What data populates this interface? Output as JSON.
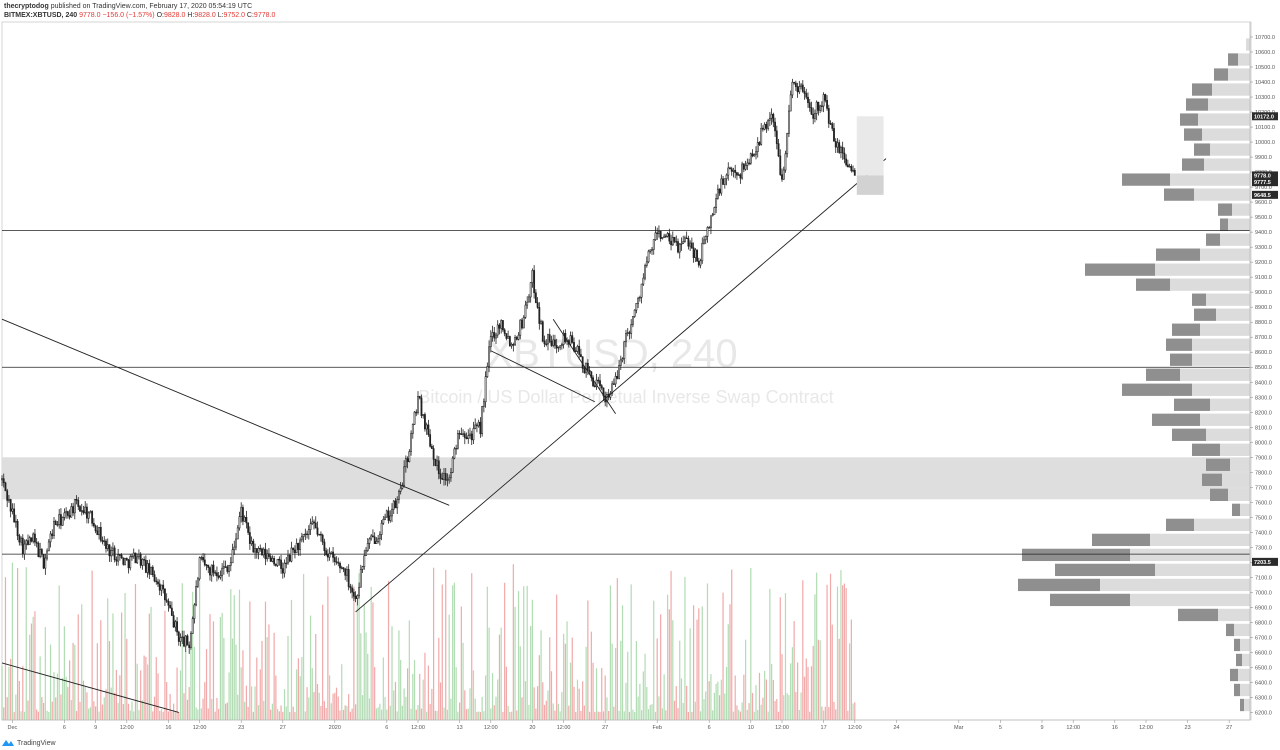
{
  "header": {
    "author": "thecryptodog",
    "published_text": "published on TradingView.com, February 17, 2020 05:54:19 UTC",
    "symbol": "BITMEX:XBTUSD, 240",
    "last": "9778.0",
    "change": "−156.0 (−1.57%)",
    "open_label": "O:",
    "open": "9828.0",
    "high_label": "H:",
    "high": "9828.0",
    "low_label": "L:",
    "low": "9752.0",
    "close_label": "C:",
    "close": "9778.0"
  },
  "watermark": {
    "symbol": "XBTUSD, 240",
    "description": "Bitcoin / US Dollar Perpetual Inverse Swap Contract"
  },
  "footer": {
    "logo_text": "TradingView"
  },
  "colors": {
    "up": "#26a69a",
    "down": "#ef5350",
    "volume_up": "#a5d6a7",
    "volume_down": "#ef9a9a",
    "profile_light": "#dcdcdc",
    "profile_dark": "#8f8f8f",
    "zone": "#dedede",
    "line": "#222222",
    "price_tag": "#2b2b2b"
  },
  "chart_data": {
    "type": "candlestick",
    "title": "",
    "ylim": [
      6150,
      10800
    ],
    "y_ticks": [
      6200,
      6300,
      6400,
      6500,
      6600,
      6700,
      6800,
      6900,
      7000,
      7100,
      7200,
      7300,
      7400,
      7500,
      7600,
      7700,
      7800,
      7900,
      8000,
      8100,
      8200,
      8300,
      8400,
      8500,
      8600,
      8700,
      8800,
      8900,
      9000,
      9100,
      9200,
      9300,
      9400,
      9500,
      9600,
      9700,
      9800,
      9900,
      10000,
      10100,
      10200,
      10300,
      10400,
      10500,
      10600,
      10700
    ],
    "x_ticks": [
      {
        "label": "Dec",
        "x": "2019-12-01"
      },
      {
        "label": "6",
        "x": "2019-12-06"
      },
      {
        "label": "9",
        "x": "2019-12-09"
      },
      {
        "label": "12:00",
        "x": "2019-12-12"
      },
      {
        "label": "16",
        "x": "2019-12-16"
      },
      {
        "label": "12:00",
        "x": "2019-12-19"
      },
      {
        "label": "23",
        "x": "2019-12-23"
      },
      {
        "label": "27",
        "x": "2019-12-27"
      },
      {
        "label": "2020",
        "x": "2020-01-01"
      },
      {
        "label": "6",
        "x": "2020-01-06"
      },
      {
        "label": "12:00",
        "x": "2020-01-09"
      },
      {
        "label": "13",
        "x": "2020-01-13"
      },
      {
        "label": "12:00",
        "x": "2020-01-16"
      },
      {
        "label": "20",
        "x": "2020-01-20"
      },
      {
        "label": "12:00",
        "x": "2020-01-23"
      },
      {
        "label": "27",
        "x": "2020-01-27"
      },
      {
        "label": "Feb",
        "x": "2020-02-01"
      },
      {
        "label": "6",
        "x": "2020-02-06"
      },
      {
        "label": "10",
        "x": "2020-02-10"
      },
      {
        "label": "12:00",
        "x": "2020-02-13"
      },
      {
        "label": "17",
        "x": "2020-02-17"
      },
      {
        "label": "12:00",
        "x": "2020-02-20"
      },
      {
        "label": "24",
        "x": "2020-02-24"
      },
      {
        "label": "Mar",
        "x": "2020-03-01"
      },
      {
        "label": "5",
        "x": "2020-03-05"
      },
      {
        "label": "9",
        "x": "2020-03-09"
      },
      {
        "label": "12:00",
        "x": "2020-03-12"
      },
      {
        "label": "16",
        "x": "2020-03-16"
      },
      {
        "label": "12:00",
        "x": "2020-03-19"
      },
      {
        "label": "23",
        "x": "2020-03-23"
      },
      {
        "label": "27",
        "x": "2020-03-27"
      }
    ],
    "price_path": [
      [
        "2019-11-30",
        7750
      ],
      [
        "2019-12-02",
        7300
      ],
      [
        "2019-12-03",
        7350
      ],
      [
        "2019-12-04",
        7200
      ],
      [
        "2019-12-05",
        7450
      ],
      [
        "2019-12-06",
        7500
      ],
      [
        "2019-12-07",
        7580
      ],
      [
        "2019-12-08",
        7550
      ],
      [
        "2019-12-09",
        7450
      ],
      [
        "2019-12-10",
        7300
      ],
      [
        "2019-12-11",
        7250
      ],
      [
        "2019-12-12",
        7200
      ],
      [
        "2019-12-13",
        7250
      ],
      [
        "2019-12-14",
        7150
      ],
      [
        "2019-12-15",
        7080
      ],
      [
        "2019-12-16",
        6900
      ],
      [
        "2019-12-17",
        6700
      ],
      [
        "2019-12-18",
        6650
      ],
      [
        "2019-12-19",
        7200
      ],
      [
        "2019-12-20",
        7150
      ],
      [
        "2019-12-21",
        7140
      ],
      [
        "2019-12-22",
        7200
      ],
      [
        "2019-12-23",
        7550
      ],
      [
        "2019-12-24",
        7300
      ],
      [
        "2019-12-25",
        7250
      ],
      [
        "2019-12-26",
        7230
      ],
      [
        "2019-12-27",
        7150
      ],
      [
        "2019-12-28",
        7280
      ],
      [
        "2019-12-29",
        7350
      ],
      [
        "2019-12-30",
        7450
      ],
      [
        "2019-12-31",
        7300
      ],
      [
        "2020-01-01",
        7200
      ],
      [
        "2020-01-02",
        7150
      ],
      [
        "2020-01-03",
        6950
      ],
      [
        "2020-01-04",
        7300
      ],
      [
        "2020-01-05",
        7380
      ],
      [
        "2020-01-06",
        7500
      ],
      [
        "2020-01-07",
        7600
      ],
      [
        "2020-01-08",
        7900
      ],
      [
        "2020-01-09",
        8300
      ],
      [
        "2020-01-10",
        8050
      ],
      [
        "2020-01-11",
        7800
      ],
      [
        "2020-01-12",
        7750
      ],
      [
        "2020-01-13",
        8100
      ],
      [
        "2020-01-14",
        8050
      ],
      [
        "2020-01-15",
        8100
      ],
      [
        "2020-01-16",
        8700
      ],
      [
        "2020-01-17",
        8800
      ],
      [
        "2020-01-18",
        8650
      ],
      [
        "2020-01-19",
        8800
      ],
      [
        "2020-01-20",
        9100
      ],
      [
        "2020-01-21",
        8700
      ],
      [
        "2020-01-22",
        8650
      ],
      [
        "2020-01-23",
        8700
      ],
      [
        "2020-01-24",
        8650
      ],
      [
        "2020-01-25",
        8500
      ],
      [
        "2020-01-26",
        8400
      ],
      [
        "2020-01-27",
        8300
      ],
      [
        "2020-01-28",
        8400
      ],
      [
        "2020-01-29",
        8700
      ],
      [
        "2020-01-30",
        8900
      ],
      [
        "2020-01-31",
        9200
      ],
      [
        "2020-02-01",
        9400
      ],
      [
        "2020-02-02",
        9350
      ],
      [
        "2020-02-03",
        9300
      ],
      [
        "2020-02-04",
        9350
      ],
      [
        "2020-02-05",
        9200
      ],
      [
        "2020-02-06",
        9450
      ],
      [
        "2020-02-07",
        9700
      ],
      [
        "2020-02-08",
        9800
      ],
      [
        "2020-02-09",
        9800
      ],
      [
        "2020-02-10",
        9900
      ],
      [
        "2020-02-11",
        10050
      ],
      [
        "2020-02-12",
        10200
      ],
      [
        "2020-02-13",
        9750
      ],
      [
        "2020-02-14",
        10400
      ],
      [
        "2020-02-15",
        10350
      ],
      [
        "2020-02-16",
        10200
      ],
      [
        "2020-02-17",
        10300
      ],
      [
        "2020-02-18",
        10000
      ],
      [
        "2020-02-19",
        9900
      ],
      [
        "2020-02-20",
        9778
      ]
    ],
    "current_price": 9778.0,
    "price_tags": [
      {
        "label": "10172.0",
        "price": 10172
      },
      {
        "label": "9778.0",
        "price": 9778
      },
      {
        "label": "9777.5",
        "price": 9733
      },
      {
        "label": "9648.5",
        "price": 9648.5
      },
      {
        "label": "7203.5",
        "price": 7203.5
      }
    ],
    "horizontal_lines": [
      9410,
      8500,
      7255
    ],
    "zone": {
      "from": 7620,
      "to": 7900
    },
    "trendlines": [
      {
        "from": [
          "2019-11-30",
          8820
        ],
        "to": [
          "2020-01-12",
          7580
        ]
      },
      {
        "from": [
          "2020-01-03",
          6870
        ],
        "to": [
          "2020-02-23",
          9890
        ]
      },
      {
        "from": [
          "2020-01-16",
          8610
        ],
        "to": [
          "2020-01-26",
          8270
        ]
      },
      {
        "from": [
          "2020-01-22",
          8820
        ],
        "to": [
          "2020-01-28",
          8190
        ]
      },
      {
        "from": [
          "2019-11-30",
          6530
        ],
        "to": [
          "2019-12-17",
          6200
        ]
      }
    ],
    "volume_profile": [
      {
        "price": 10650,
        "light": 4,
        "dark": 0
      },
      {
        "price": 10550,
        "light": 12,
        "dark": 10
      },
      {
        "price": 10450,
        "light": 22,
        "dark": 14
      },
      {
        "price": 10350,
        "light": 38,
        "dark": 20
      },
      {
        "price": 10250,
        "light": 42,
        "dark": 22
      },
      {
        "price": 10150,
        "light": 52,
        "dark": 18
      },
      {
        "price": 10050,
        "light": 48,
        "dark": 18
      },
      {
        "price": 9950,
        "light": 40,
        "dark": 16
      },
      {
        "price": 9850,
        "light": 46,
        "dark": 22
      },
      {
        "price": 9750,
        "light": 80,
        "dark": 48
      },
      {
        "price": 9650,
        "light": 56,
        "dark": 30
      },
      {
        "price": 9550,
        "light": 18,
        "dark": 14
      },
      {
        "price": 9450,
        "light": 22,
        "dark": 8
      },
      {
        "price": 9350,
        "light": 30,
        "dark": 14
      },
      {
        "price": 9250,
        "light": 50,
        "dark": 44
      },
      {
        "price": 9150,
        "light": 95,
        "dark": 70
      },
      {
        "price": 9050,
        "light": 80,
        "dark": 34
      },
      {
        "price": 8950,
        "light": 44,
        "dark": 14
      },
      {
        "price": 8850,
        "light": 34,
        "dark": 22
      },
      {
        "price": 8750,
        "light": 50,
        "dark": 28
      },
      {
        "price": 8650,
        "light": 58,
        "dark": 26
      },
      {
        "price": 8550,
        "light": 58,
        "dark": 22
      },
      {
        "price": 8450,
        "light": 70,
        "dark": 34
      },
      {
        "price": 8350,
        "light": 58,
        "dark": 70
      },
      {
        "price": 8250,
        "light": 40,
        "dark": 36
      },
      {
        "price": 8150,
        "light": 50,
        "dark": 48
      },
      {
        "price": 8050,
        "light": 44,
        "dark": 34
      },
      {
        "price": 7950,
        "light": 30,
        "dark": 28
      },
      {
        "price": 7850,
        "light": 20,
        "dark": 24
      },
      {
        "price": 7750,
        "light": 28,
        "dark": 20
      },
      {
        "price": 7650,
        "light": 22,
        "dark": 18
      },
      {
        "price": 7550,
        "light": 10,
        "dark": 8
      },
      {
        "price": 7450,
        "light": 56,
        "dark": 28
      },
      {
        "price": 7350,
        "light": 100,
        "dark": 58
      },
      {
        "price": 7250,
        "light": 120,
        "dark": 108
      },
      {
        "price": 7150,
        "light": 95,
        "dark": 100
      },
      {
        "price": 7050,
        "light": 150,
        "dark": 82
      },
      {
        "price": 6950,
        "light": 120,
        "dark": 80
      },
      {
        "price": 6850,
        "light": 32,
        "dark": 40
      },
      {
        "price": 6750,
        "light": 16,
        "dark": 8
      },
      {
        "price": 6650,
        "light": 10,
        "dark": 6
      },
      {
        "price": 6550,
        "light": 8,
        "dark": 6
      },
      {
        "price": 6450,
        "light": 12,
        "dark": 8
      },
      {
        "price": 6350,
        "light": 10,
        "dark": 6
      },
      {
        "price": 6250,
        "light": 6,
        "dark": 4
      }
    ]
  }
}
